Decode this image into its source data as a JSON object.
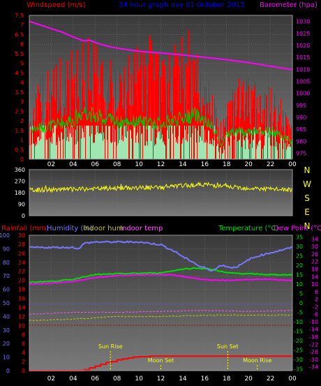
{
  "colors": {
    "background": "#000000",
    "plot_bg_top": "#3a3a3a",
    "plot_bg_bottom": "#7a7a7a",
    "grid": "#7a7a7a",
    "frame": "#9a9a9a",
    "wind_avg": "#9fe6b0",
    "wind_gust": "#ff0000",
    "wind_green": "#00cc00",
    "barometer": "#ff00ff",
    "wind_dir": "#ffff00",
    "rain": "#ff0000",
    "humidity": "#7777ff",
    "indoor_hum": "#c8c800",
    "indoor_temp": "#ff55ff",
    "temperature": "#00dd00",
    "dew_point": "#ff00ff",
    "tick_label": "#ffffff",
    "title_text": "#ff0000",
    "dir_label": "#ffff00",
    "astro": "#ffff00"
  },
  "header": {
    "windspeed_title": "Windspeed (m/s)",
    "graph_title": "24 hour graph day  01 October 2015",
    "barometer_title": "Barometer (hpa)"
  },
  "footer": {
    "rainfall_title": "Rainfall (mm)",
    "humidity_title": "Humidity (%)",
    "indoor_hum_title": "Indoor hum",
    "indoor_temp_title": "Indoor temp",
    "temperature_title": "Temperature (°C)",
    "dew_point_title": "Dew Point (°C)"
  },
  "direction_letters": [
    "N",
    "W",
    "S",
    "E",
    "N"
  ],
  "astro": {
    "sun_rise": "Sun Rise",
    "sun_set": "Sun Set",
    "moon_set": "Moon Set",
    "moon_rise": "Moon Rise"
  },
  "chart_data": [
    {
      "id": "wind_pressure",
      "type": "line",
      "title": "24 hour graph day  01 October 2015",
      "x_hours_range": [
        0,
        24
      ],
      "x_ticks": [
        "02",
        "04",
        "06",
        "08",
        "10",
        "12",
        "14",
        "16",
        "18",
        "20",
        "22",
        "00"
      ],
      "y_left_label": "Windspeed (m/s)",
      "y_left_range": [
        0,
        7.5
      ],
      "y_left_ticks": [
        "0",
        "0.5",
        "1",
        "1.5",
        "2",
        "2.5",
        "3",
        "3.5",
        "4",
        "4.5",
        "5",
        "5.5",
        "6",
        "6.5",
        "7",
        "7.5"
      ],
      "y_right_label": "Barometer (hpa)",
      "y_right_range": [
        972.5,
        1032.5
      ],
      "y_right_ticks": [
        "975",
        "980",
        "985",
        "990",
        "995",
        "1000",
        "1005",
        "1010",
        "1015",
        "1020",
        "1025",
        "1030"
      ],
      "series": [
        {
          "name": "Barometer (hpa)",
          "x": [
            0,
            1,
            2,
            3,
            4,
            5,
            5.5,
            6,
            7,
            8,
            9,
            10,
            12,
            14,
            16,
            18,
            20,
            22,
            24
          ],
          "values": [
            1030,
            1028.5,
            1027,
            1025.5,
            1023.5,
            1021.8,
            1022.2,
            1021.2,
            1019.8,
            1018.8,
            1018.2,
            1017.5,
            1016.8,
            1016,
            1015,
            1014,
            1012.8,
            1011.3,
            1009.8
          ]
        },
        {
          "name": "Gust profile",
          "x": [
            0,
            1,
            2,
            3,
            4,
            5,
            6,
            7,
            8,
            9,
            10,
            11,
            12,
            13,
            14,
            15,
            16,
            17,
            17.5,
            18,
            19,
            20,
            21,
            22,
            23,
            24
          ],
          "values": [
            1.9,
            2.8,
            3.2,
            3.8,
            4.0,
            4.3,
            4.0,
            3.6,
            3.2,
            3.6,
            4.0,
            4.2,
            3.4,
            3.8,
            4.6,
            4.2,
            3.2,
            2.0,
            1.2,
            2.2,
            2.7,
            2.8,
            2.7,
            2.5,
            2.0,
            1.3
          ]
        },
        {
          "name": "Average profile",
          "x": [
            0,
            2,
            4,
            5,
            6,
            8,
            10,
            12,
            14,
            15,
            16,
            17,
            17.5,
            18,
            20,
            22,
            24
          ],
          "values": [
            1.6,
            1.8,
            2.1,
            2.6,
            2.3,
            2.0,
            2.0,
            1.9,
            2.2,
            2.4,
            2.0,
            1.5,
            0.6,
            1.4,
            1.5,
            1.5,
            0.9
          ]
        }
      ]
    },
    {
      "id": "wind_direction",
      "type": "line",
      "x_hours_range": [
        0,
        24
      ],
      "y_range": [
        0,
        360
      ],
      "y_ticks": [
        "0",
        "90",
        "180",
        "270",
        "360"
      ],
      "series": [
        {
          "name": "Wind direction",
          "x": [
            0,
            4,
            8,
            12,
            14,
            16,
            18,
            20,
            24
          ],
          "values": [
            200,
            205,
            215,
            220,
            235,
            245,
            225,
            215,
            200
          ]
        }
      ]
    },
    {
      "id": "temp_hum_rain",
      "type": "line",
      "x_hours_range": [
        0,
        24
      ],
      "x_ticks": [
        "02",
        "04",
        "06",
        "08",
        "10",
        "12",
        "14",
        "16",
        "18",
        "20",
        "22",
        "00"
      ],
      "y_humidity_range": [
        0,
        100
      ],
      "y_humidity_ticks": [
        "0",
        "10",
        "20",
        "30",
        "40",
        "50",
        "60",
        "70",
        "80",
        "90",
        "100"
      ],
      "y_rain_range": [
        0,
        30
      ],
      "y_rain_ticks": [
        "0",
        "2",
        "4",
        "6",
        "8",
        "10",
        "12",
        "14",
        "16",
        "18",
        "20",
        "22",
        "24",
        "26",
        "28",
        "30"
      ],
      "y_temp_range": [
        -36,
        36
      ],
      "y_temp_ticks": [
        "35",
        "30",
        "25",
        "20",
        "15",
        "10",
        "5",
        "0",
        "-5",
        "-10",
        "-15",
        "-20",
        "-25",
        "-30",
        "-35"
      ],
      "y_dew_ticks": [
        "34",
        "30",
        "26",
        "22",
        "18",
        "14",
        "10",
        "6",
        "2",
        "-2",
        "-6",
        "-10",
        "-14",
        "-18",
        "-22",
        "-26",
        "-30",
        "-34"
      ],
      "series": [
        {
          "name": "Humidity (%)",
          "x": [
            0,
            1,
            2,
            3,
            4,
            4.5,
            5,
            6,
            7,
            8,
            9,
            10,
            11,
            12,
            12.5,
            13,
            13.5,
            14,
            14.5,
            15,
            15.5,
            16,
            16.5,
            17,
            17.5,
            18,
            18.5,
            19,
            19.5,
            20,
            21,
            22,
            23,
            24
          ],
          "values": [
            91,
            91,
            91,
            91,
            91,
            90,
            94,
            95,
            95,
            95,
            95,
            95,
            94,
            93,
            91,
            89,
            87,
            84,
            82,
            80,
            77,
            76,
            74,
            75,
            78,
            77,
            76,
            77,
            79,
            82,
            85,
            87,
            89,
            91
          ]
        },
        {
          "name": "Temperature (°C)",
          "x": [
            0,
            2,
            4,
            5,
            6,
            8,
            10,
            12,
            13,
            14,
            15,
            16,
            17,
            18,
            20,
            22,
            24
          ],
          "values": [
            11,
            11.5,
            12.5,
            14,
            15,
            15.5,
            15.8,
            16,
            17,
            18,
            18.5,
            18.3,
            17.5,
            16,
            15.5,
            15,
            15
          ]
        },
        {
          "name": "Dew Point (°C)",
          "x": [
            0,
            2,
            4,
            6,
            8,
            10,
            12,
            13,
            14,
            16,
            17,
            18,
            20,
            22,
            24
          ],
          "values": [
            10,
            10.5,
            11.5,
            13.5,
            14.5,
            15,
            15,
            15,
            14,
            12.5,
            12,
            12,
            12.5,
            12.5,
            12
          ]
        },
        {
          "name": "Indoor hum",
          "x": [
            0,
            4,
            8,
            12,
            16,
            20,
            24
          ],
          "values": [
            37,
            38,
            40,
            40,
            41,
            41,
            41
          ]
        },
        {
          "name": "Indoor temp",
          "x": [
            0,
            4,
            8,
            12,
            16,
            20,
            24
          ],
          "values": [
            -6,
            -5,
            -5,
            -4.5,
            -4,
            -4.5,
            -4
          ]
        },
        {
          "name": "Rainfall (mm)",
          "x": [
            0,
            4,
            5,
            5.5,
            6,
            6.5,
            7,
            7.5,
            8,
            8.5,
            9,
            9.5,
            10,
            11,
            12,
            24
          ],
          "values": [
            0,
            0,
            0.2,
            0.6,
            1.0,
            1.4,
            1.8,
            2.0,
            2.4,
            2.6,
            2.8,
            3.0,
            3.1,
            3.2,
            3.2,
            3.2
          ]
        }
      ]
    }
  ]
}
